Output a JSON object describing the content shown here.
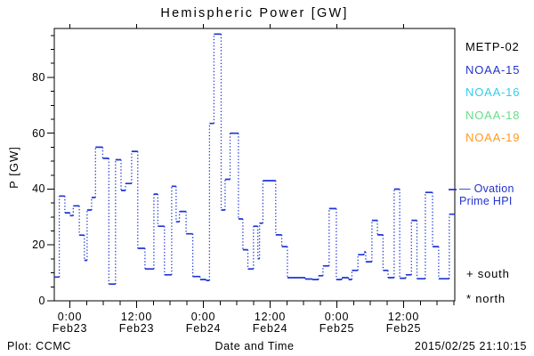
{
  "footer": {
    "left": "Plot: CCMC",
    "timestamp": "2015/02/25 21:10:15"
  },
  "legend": {
    "satellites": [
      {
        "label": "METP-02",
        "color": "#000000"
      },
      {
        "label": "NOAA-15",
        "color": "#2233cc"
      },
      {
        "label": "NOAA-16",
        "color": "#33ccee"
      },
      {
        "label": "NOAA-18",
        "color": "#66dd88"
      },
      {
        "label": "NOAA-19",
        "color": "#ff9922"
      }
    ],
    "model": {
      "line1": "— Ovation",
      "line2": "Prime HPI",
      "color": "#2233cc"
    },
    "markers": [
      {
        "symbol": "+",
        "label": "south"
      },
      {
        "symbol": "*",
        "label": "north"
      }
    ]
  },
  "chart_data": {
    "type": "line",
    "style": "step-plot, solid horizontal segments with dotted vertical connectors",
    "title": "Hemispheric Power [GW]",
    "xlabel": "Date and Time",
    "ylabel": "P [GW]",
    "series_name": "Ovation Prime HPI",
    "line_color": "#1d35d6",
    "ylim": [
      0,
      97.5
    ],
    "y_major_ticks": [
      0,
      20,
      40,
      60,
      80
    ],
    "y_minor_step": 5,
    "xlim_hours": [
      -2.8,
      69.2
    ],
    "x_minor_step_hours": 3,
    "x_ticks": [
      {
        "hours": 0,
        "time": "0:00",
        "date": "Feb23"
      },
      {
        "hours": 12,
        "time": "12:00",
        "date": "Feb23"
      },
      {
        "hours": 24,
        "time": "0:00",
        "date": "Feb24"
      },
      {
        "hours": 36,
        "time": "12:00",
        "date": "Feb24"
      },
      {
        "hours": 48,
        "time": "0:00",
        "date": "Feb25"
      },
      {
        "hours": 60,
        "time": "12:00",
        "date": "Feb25"
      }
    ],
    "steps_hours_vs_gw": [
      [
        -2.8,
        8.5
      ],
      [
        -1.9,
        37.5
      ],
      [
        -0.9,
        31.5
      ],
      [
        0.0,
        30.5
      ],
      [
        0.6,
        34.0
      ],
      [
        1.7,
        23.5
      ],
      [
        2.6,
        14.5
      ],
      [
        3.1,
        32.5
      ],
      [
        3.9,
        37.0
      ],
      [
        4.6,
        55.0
      ],
      [
        5.9,
        51.0
      ],
      [
        7.0,
        6.0
      ],
      [
        8.2,
        50.5
      ],
      [
        9.2,
        39.5
      ],
      [
        10.0,
        42.0
      ],
      [
        11.1,
        53.5
      ],
      [
        12.2,
        18.8
      ],
      [
        13.5,
        11.4
      ],
      [
        15.1,
        38.2
      ],
      [
        15.8,
        26.7
      ],
      [
        17.0,
        9.3
      ],
      [
        18.3,
        41.0
      ],
      [
        19.1,
        28.3
      ],
      [
        19.7,
        32.0
      ],
      [
        20.9,
        24.0
      ],
      [
        22.1,
        8.7
      ],
      [
        23.4,
        7.6
      ],
      [
        24.5,
        7.3
      ],
      [
        25.1,
        63.5
      ],
      [
        25.9,
        95.5
      ],
      [
        27.2,
        32.5
      ],
      [
        27.9,
        43.5
      ],
      [
        28.8,
        60.0
      ],
      [
        30.3,
        29.3
      ],
      [
        31.1,
        18.3
      ],
      [
        32.0,
        11.4
      ],
      [
        33.0,
        26.7
      ],
      [
        33.8,
        15.1
      ],
      [
        34.1,
        27.8
      ],
      [
        34.7,
        43.0
      ],
      [
        37.0,
        23.6
      ],
      [
        38.1,
        19.4
      ],
      [
        39.1,
        8.3
      ],
      [
        42.3,
        7.8
      ],
      [
        43.6,
        7.6
      ],
      [
        44.7,
        9.0
      ],
      [
        45.5,
        12.5
      ],
      [
        46.6,
        33.0
      ],
      [
        47.9,
        7.6
      ],
      [
        48.9,
        8.3
      ],
      [
        50.1,
        7.6
      ],
      [
        50.7,
        10.9
      ],
      [
        51.8,
        16.5
      ],
      [
        52.9,
        17.5
      ],
      [
        53.2,
        14.0
      ],
      [
        54.3,
        28.8
      ],
      [
        55.3,
        23.6
      ],
      [
        56.3,
        10.9
      ],
      [
        57.2,
        8.3
      ],
      [
        58.3,
        40.0
      ],
      [
        59.3,
        8.1
      ],
      [
        60.4,
        9.3
      ],
      [
        61.4,
        28.8
      ],
      [
        62.4,
        7.9
      ],
      [
        63.9,
        38.8
      ],
      [
        65.2,
        19.4
      ],
      [
        66.3,
        7.9
      ],
      [
        68.2,
        31.0
      ],
      [
        69.2,
        31.0
      ]
    ]
  }
}
